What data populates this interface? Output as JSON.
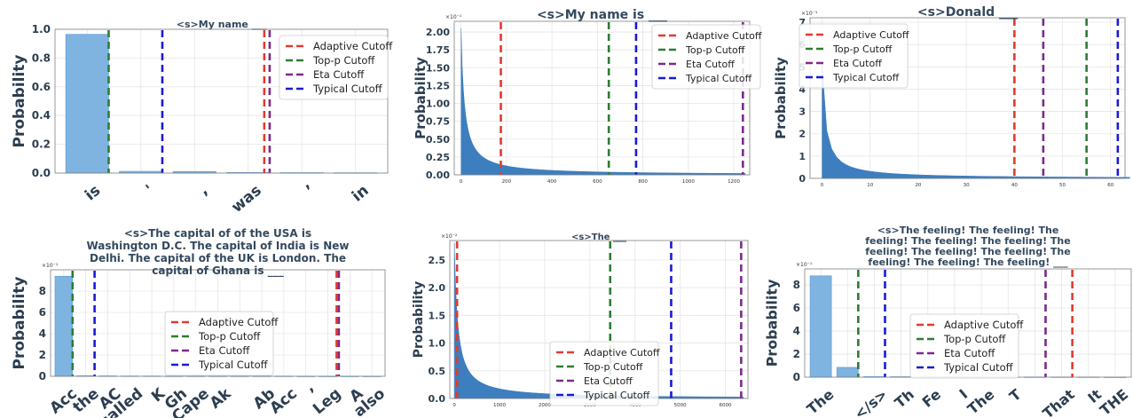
{
  "figure": {
    "panels": [
      {
        "title_lines": [
          "<s>My name ___"
        ],
        "ylabel": "Probability",
        "legend_labels": [
          "Adaptive Cutoff",
          "Top-p Cutoff",
          "Eta Cutoff",
          "Typical Cutoff"
        ]
      },
      {
        "title_lines": [
          "<s>My name is ___"
        ],
        "ylabel": "Probability",
        "exponent": "×10⁻¹",
        "legend_labels": [
          "Adaptive Cutoff",
          "Top-p Cutoff",
          "Eta Cutoff",
          "Typical Cutoff"
        ]
      },
      {
        "title_lines": [
          "<s>Donald ___"
        ],
        "ylabel": "Probability",
        "exponent": "×10⁻¹",
        "legend_labels": [
          "Adaptive Cutoff",
          "Top-p Cutoff",
          "Eta Cutoff",
          "Typical Cutoff"
        ]
      },
      {
        "title_lines": [
          "<s>The capital of of the USA is",
          "Washington D.C. The capital of India is New",
          "Delhi. The capital of the UK is London. The",
          "capital of Ghana is ___"
        ],
        "ylabel": "Probability",
        "exponent": "×10⁻¹",
        "legend_labels": [
          "Adaptive Cutoff",
          "Top-p Cutoff",
          "Eta Cutoff",
          "Typical Cutoff"
        ]
      },
      {
        "title_lines": [
          "<s>The ___"
        ],
        "ylabel": "Probability",
        "exponent": "×10⁻²",
        "legend_labels": [
          "Adaptive Cutoff",
          "Top-p Cutoff",
          "Eta Cutoff",
          "Typical Cutoff"
        ]
      },
      {
        "title_lines": [
          "<s>The feeling! The feeling! The",
          "feeling! The feeling! The feeling! The",
          "feeling! The feeling! The feeling! The",
          "feeling! The feeling! The feeling! ___"
        ],
        "ylabel": "Probability",
        "exponent": "×10⁻¹",
        "legend_labels": [
          "Adaptive Cutoff",
          "Top-p Cutoff",
          "Eta Cutoff",
          "Typical Cutoff"
        ]
      }
    ]
  },
  "colors": {
    "bar": "#7fb3e0",
    "bar_edge": "#5b9bd5",
    "hist": "#3d7ebf",
    "adaptive": "#e03b2e",
    "top_p": "#2e7d32",
    "eta": "#7b2a8c",
    "typical": "#1a1ad6"
  },
  "chart_data": [
    {
      "type": "bar",
      "title": "<s>My name ___",
      "ylabel": "Probability",
      "categories": [
        "is",
        "'",
        ",",
        "was",
        "’",
        "in"
      ],
      "values": [
        0.965,
        0.012,
        0.011,
        0.004,
        0.003,
        0.002
      ],
      "ylim": [
        0,
        1.0
      ],
      "yticks": [
        0.0,
        0.2,
        0.4,
        0.6,
        0.8,
        1.0
      ],
      "cutoffs": [
        {
          "name": "Adaptive Cutoff",
          "x": 3.3
        },
        {
          "name": "Top-p Cutoff",
          "x": 0.4
        },
        {
          "name": "Eta Cutoff",
          "x": 3.4
        },
        {
          "name": "Typical Cutoff",
          "x": 1.4
        }
      ],
      "legend": "top-right",
      "grid": true
    },
    {
      "type": "histogram",
      "title": "<s>My name is ___",
      "ylabel": "Probability",
      "scale": "×10⁻¹",
      "xlim": [
        -30,
        1270
      ],
      "xticks": [
        0,
        200,
        400,
        600,
        800,
        1000,
        1200
      ],
      "ylim": [
        0,
        2.15
      ],
      "yticks": [
        0.0,
        0.25,
        0.5,
        0.75,
        1.0,
        1.25,
        1.5,
        1.75,
        2.0
      ],
      "peak": 2.05,
      "decay_ranks": 1250,
      "cutoffs": [
        {
          "name": "Adaptive Cutoff",
          "x": 175
        },
        {
          "name": "Top-p Cutoff",
          "x": 650
        },
        {
          "name": "Eta Cutoff",
          "x": 1240
        },
        {
          "name": "Typical Cutoff",
          "x": 770
        }
      ],
      "legend": "top-right",
      "grid": true
    },
    {
      "type": "histogram",
      "title": "<s>Donald ___",
      "ylabel": "Probability",
      "scale": "×10⁻¹",
      "xlim": [
        -2.5,
        63
      ],
      "xticks": [
        0,
        10,
        20,
        30,
        40,
        50,
        60
      ],
      "ylim": [
        0,
        7.2
      ],
      "yticks": [
        0,
        1,
        2,
        3,
        4,
        5,
        6,
        7
      ],
      "peak": 5.1,
      "decay_ranks": 64,
      "cutoffs": [
        {
          "name": "Adaptive Cutoff",
          "x": 40
        },
        {
          "name": "Top-p Cutoff",
          "x": 55
        },
        {
          "name": "Eta Cutoff",
          "x": 46
        },
        {
          "name": "Typical Cutoff",
          "x": 61.5
        }
      ],
      "legend": "top-left",
      "grid": true
    },
    {
      "type": "bar",
      "title": "<s>The capital of of the USA is Washington D.C. The capital of India is New Delhi. The capital of the UK is London. The capital of Ghana is ___",
      "ylabel": "Probability",
      "scale": "×10⁻¹",
      "categories": [
        "Acc",
        "the",
        "AC",
        "called",
        "K",
        "Gh",
        "Cape",
        "Ak",
        "",
        "Ab",
        "Acc",
        "’",
        "Leg",
        "A",
        "also"
      ],
      "values": [
        9.4,
        0.05,
        0.04,
        0.03,
        0.03,
        0.02,
        0.02,
        0.02,
        0.02,
        0.02,
        0.02,
        0.01,
        0.01,
        0.01,
        0.01
      ],
      "ylim": [
        0,
        10
      ],
      "yticks": [
        0,
        2,
        4,
        6,
        8
      ],
      "cutoffs": [
        {
          "name": "Adaptive Cutoff",
          "x": 12.4
        },
        {
          "name": "Top-p Cutoff",
          "x": 0.4
        },
        {
          "name": "Eta Cutoff",
          "x": 12.5
        },
        {
          "name": "Typical Cutoff",
          "x": 1.4
        }
      ],
      "legend": "center",
      "grid": true
    },
    {
      "type": "histogram",
      "title": "<s>The ___",
      "ylabel": "Probability",
      "scale": "×10⁻²",
      "xlim": [
        -100,
        6500
      ],
      "xticks": [
        0,
        1000,
        2000,
        3000,
        4000,
        5000,
        6000
      ],
      "ylim": [
        0,
        2.85
      ],
      "yticks": [
        0.0,
        0.5,
        1.0,
        1.5,
        2.0,
        2.5
      ],
      "peak": 2.8,
      "decay_ranks": 6400,
      "cutoffs": [
        {
          "name": "Adaptive Cutoff",
          "x": 60
        },
        {
          "name": "Top-p Cutoff",
          "x": 3450
        },
        {
          "name": "Eta Cutoff",
          "x": 6350
        },
        {
          "name": "Typical Cutoff",
          "x": 4800
        }
      ],
      "legend": "bottom-right",
      "grid": true
    },
    {
      "type": "bar",
      "title": "<s>The feeling! The feeling! The feeling! The feeling! The feeling! The feeling! The feeling! The feeling! The feeling! The feeling! The feeling! ___",
      "ylabel": "Probability",
      "scale": "×10⁻¹",
      "categories": [
        "The",
        "",
        "</s>",
        "Th",
        "Fe",
        "I",
        "The",
        "T",
        "",
        "That",
        "It",
        "THE"
      ],
      "values": [
        8.8,
        0.85,
        0.05,
        0.04,
        0.03,
        0.03,
        0.02,
        0.02,
        0.02,
        0.02,
        0.02,
        0.01
      ],
      "ylim": [
        0,
        9.4
      ],
      "yticks": [
        0,
        2,
        4,
        6,
        8
      ],
      "cutoffs": [
        {
          "name": "Adaptive Cutoff",
          "x": 9.4
        },
        {
          "name": "Top-p Cutoff",
          "x": 1.4
        },
        {
          "name": "Eta Cutoff",
          "x": 8.4
        },
        {
          "name": "Typical Cutoff",
          "x": 2.4
        }
      ],
      "legend": "center",
      "grid": true
    }
  ]
}
